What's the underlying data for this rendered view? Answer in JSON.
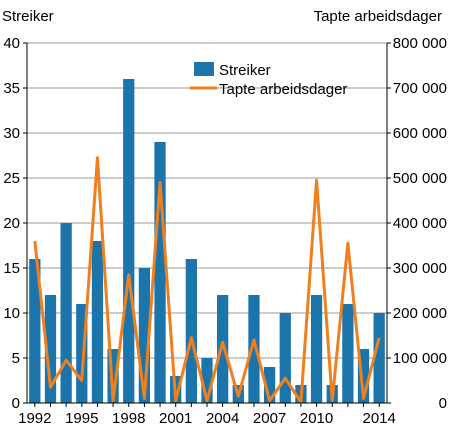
{
  "chart_data": {
    "type": "bar",
    "left_axis_title": "Streiker",
    "right_axis_title": "Tapte arbeidsdager",
    "years": [
      1992,
      1993,
      1994,
      1995,
      1996,
      1997,
      1998,
      1999,
      2000,
      2001,
      2002,
      2003,
      2004,
      2005,
      2006,
      2007,
      2008,
      2009,
      2010,
      2011,
      2012,
      2013,
      2014
    ],
    "x_tick_labels": [
      "1992",
      "1995",
      "1998",
      "2001",
      "2004",
      "2007",
      "2010",
      "2014"
    ],
    "x_tick_years": [
      1992,
      1995,
      1998,
      2001,
      2004,
      2007,
      2010,
      2014
    ],
    "series": [
      {
        "name": "Streiker",
        "type": "bar",
        "axis": "left",
        "color": "#1b75ab",
        "values": [
          16,
          12,
          20,
          11,
          18,
          6,
          36,
          15,
          29,
          3,
          16,
          5,
          12,
          2,
          12,
          4,
          10,
          2,
          12,
          2,
          11,
          6,
          10
        ]
      },
      {
        "name": "Tapte arbeidsdager",
        "type": "line",
        "axis": "right",
        "color": "#f07f1e",
        "values": [
          360000,
          35000,
          95000,
          50000,
          545000,
          5000,
          285000,
          10000,
          490000,
          5000,
          145000,
          5000,
          135000,
          15000,
          140000,
          5000,
          55000,
          2000,
          495000,
          5000,
          355000,
          10000,
          145000
        ]
      }
    ],
    "left_axis": {
      "min": 0,
      "max": 40,
      "step": 5,
      "tick_labels": [
        "0",
        "5",
        "10",
        "15",
        "20",
        "25",
        "30",
        "35",
        "40"
      ]
    },
    "right_axis": {
      "min": 0,
      "max": 800000,
      "step": 100000,
      "tick_labels": [
        "0",
        "100 000",
        "200 000",
        "300 000",
        "400 000",
        "500 000",
        "600 000",
        "700 000",
        "800 000"
      ]
    },
    "grid": true,
    "legend_position": "top-right"
  }
}
